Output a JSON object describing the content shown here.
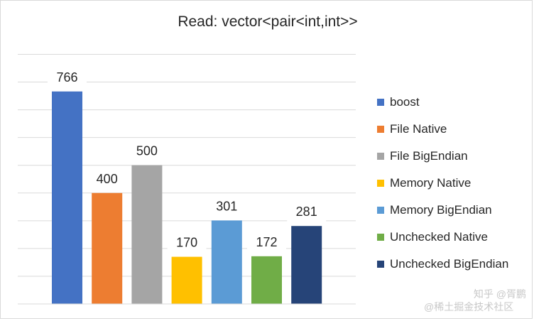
{
  "chart_data": {
    "type": "bar",
    "title": "Read: vector<pair<int,int>>",
    "xlabel": "",
    "ylabel": "",
    "ylim": [
      0,
      900
    ],
    "grid": true,
    "legend_position": "right",
    "categories": [
      ""
    ],
    "series": [
      {
        "name": "boost",
        "values": [
          766
        ],
        "color": "#4472c4"
      },
      {
        "name": "File Native",
        "values": [
          400
        ],
        "color": "#ed7d31"
      },
      {
        "name": "File BigEndian",
        "values": [
          500
        ],
        "color": "#a5a5a5"
      },
      {
        "name": "Memory Native",
        "values": [
          170
        ],
        "color": "#ffc000"
      },
      {
        "name": "Memory BigEndian",
        "values": [
          301
        ],
        "color": "#5b9bd5"
      },
      {
        "name": "Unchecked Native",
        "values": [
          172
        ],
        "color": "#70ad47"
      },
      {
        "name": "Unchecked BigEndian",
        "values": [
          281
        ],
        "color": "#264478"
      }
    ]
  },
  "watermark": {
    "line1": "知乎 @胥鹏",
    "line2": "@稀土掘金技术社区"
  }
}
